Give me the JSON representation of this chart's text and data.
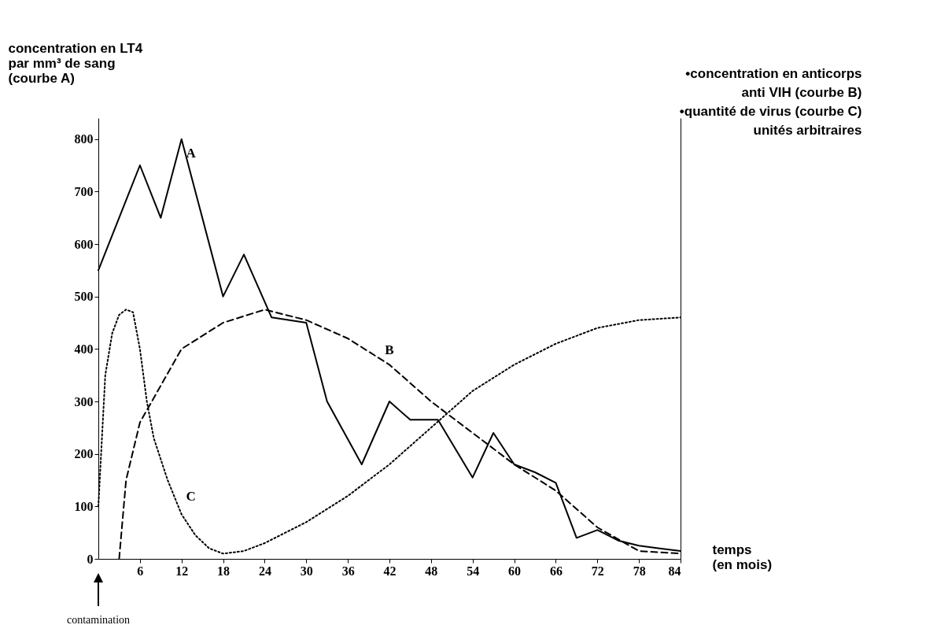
{
  "chart_data": {
    "type": "line",
    "ylabel": "concentration en LT4\npar mm³ de sang\n(courbe A)",
    "y2label": "•concentration en anticorps\nanti VIH (courbe B)\n•quantité de virus (courbe C)\nunités arbitraires",
    "xlabel": "temps\n(en mois)",
    "annotations": [
      "contamination"
    ],
    "xlim": [
      0,
      84
    ],
    "xticks": [
      6,
      12,
      18,
      24,
      30,
      36,
      42,
      48,
      54,
      60,
      66,
      72,
      78,
      84
    ],
    "ylim": [
      0,
      840
    ],
    "yticks": [
      0,
      100,
      200,
      300,
      400,
      500,
      600,
      700,
      800
    ],
    "marker": "none",
    "legend": false,
    "grid": false,
    "series": [
      {
        "name": "A",
        "color": "#000000",
        "line_style": "solid",
        "x": [
          0,
          6,
          9,
          12,
          18,
          21,
          25,
          30,
          33,
          38,
          42,
          45,
          49,
          54,
          57,
          60,
          63,
          66,
          69,
          72,
          75,
          78,
          81,
          84
        ],
        "values": [
          550,
          750,
          650,
          800,
          500,
          580,
          460,
          450,
          300,
          180,
          300,
          265,
          265,
          155,
          240,
          180,
          165,
          145,
          40,
          55,
          35,
          25,
          20,
          15
        ]
      },
      {
        "name": "B",
        "color": "#000000",
        "line_style": "dashed",
        "x": [
          3,
          4,
          6,
          9,
          12,
          18,
          24,
          30,
          36,
          42,
          48,
          54,
          60,
          66,
          72,
          78,
          84
        ],
        "values": [
          0,
          150,
          260,
          330,
          400,
          450,
          475,
          455,
          420,
          370,
          300,
          240,
          180,
          130,
          60,
          15,
          10
        ]
      },
      {
        "name": "C",
        "color": "#000000",
        "line_style": "dotted",
        "x": [
          0,
          1,
          2,
          3,
          4,
          5,
          6,
          7,
          8,
          10,
          12,
          14,
          16,
          18,
          21,
          24,
          30,
          36,
          42,
          48,
          54,
          60,
          66,
          72,
          78,
          84
        ],
        "values": [
          100,
          350,
          430,
          465,
          475,
          470,
          400,
          300,
          230,
          150,
          85,
          45,
          20,
          10,
          15,
          30,
          70,
          120,
          180,
          250,
          320,
          370,
          410,
          440,
          455,
          460
        ]
      }
    ]
  }
}
